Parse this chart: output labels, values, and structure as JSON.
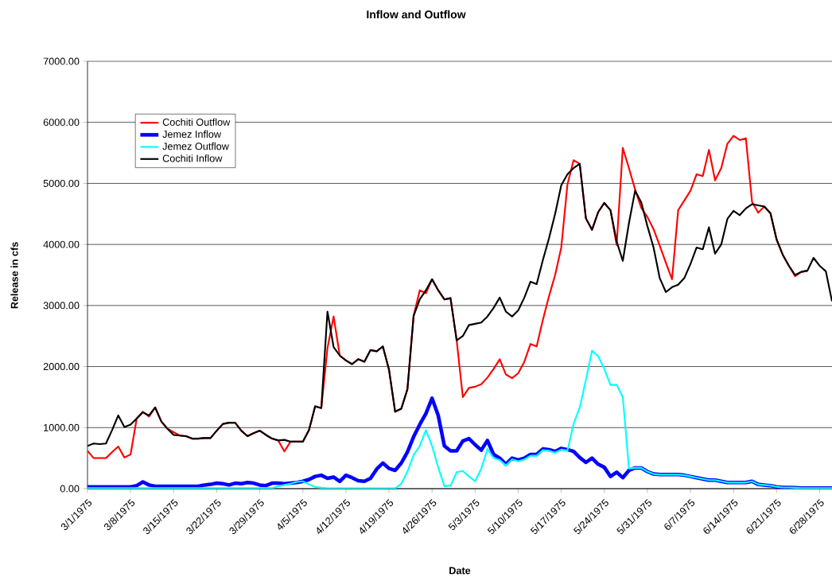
{
  "chart_data": {
    "type": "line",
    "title": "Inflow and Outflow",
    "xlabel": "Date",
    "ylabel": "Release in cfs",
    "x": [
      "1975-03-01",
      "1975-03-02",
      "1975-03-03",
      "1975-03-04",
      "1975-03-05",
      "1975-03-06",
      "1975-03-07",
      "1975-03-08",
      "1975-03-09",
      "1975-03-10",
      "1975-03-11",
      "1975-03-12",
      "1975-03-13",
      "1975-03-14",
      "1975-03-15",
      "1975-03-16",
      "1975-03-17",
      "1975-03-18",
      "1975-03-19",
      "1975-03-20",
      "1975-03-21",
      "1975-03-22",
      "1975-03-23",
      "1975-03-24",
      "1975-03-25",
      "1975-03-26",
      "1975-03-27",
      "1975-03-28",
      "1975-03-29",
      "1975-03-30",
      "1975-03-31",
      "1975-04-01",
      "1975-04-02",
      "1975-04-03",
      "1975-04-04",
      "1975-04-05",
      "1975-04-06",
      "1975-04-07",
      "1975-04-08",
      "1975-04-09",
      "1975-04-10",
      "1975-04-11",
      "1975-04-12",
      "1975-04-13",
      "1975-04-14",
      "1975-04-15",
      "1975-04-16",
      "1975-04-17",
      "1975-04-18",
      "1975-04-19",
      "1975-04-20",
      "1975-04-21",
      "1975-04-22",
      "1975-04-23",
      "1975-04-24",
      "1975-04-25",
      "1975-04-26",
      "1975-04-27",
      "1975-04-28",
      "1975-04-29",
      "1975-04-30",
      "1975-05-01",
      "1975-05-02",
      "1975-05-03",
      "1975-05-04",
      "1975-05-05",
      "1975-05-06",
      "1975-05-07",
      "1975-05-08",
      "1975-05-09",
      "1975-05-10",
      "1975-05-11",
      "1975-05-12",
      "1975-05-13",
      "1975-05-14",
      "1975-05-15",
      "1975-05-16",
      "1975-05-17",
      "1975-05-18",
      "1975-05-19",
      "1975-05-20",
      "1975-05-21",
      "1975-05-22",
      "1975-05-23",
      "1975-05-24",
      "1975-05-25",
      "1975-05-26",
      "1975-05-27",
      "1975-05-28",
      "1975-05-29",
      "1975-05-30",
      "1975-05-31",
      "1975-06-01",
      "1975-06-02",
      "1975-06-03",
      "1975-06-04",
      "1975-06-05",
      "1975-06-06",
      "1975-06-07",
      "1975-06-08",
      "1975-06-09",
      "1975-06-10",
      "1975-06-11",
      "1975-06-12",
      "1975-06-13",
      "1975-06-14",
      "1975-06-15",
      "1975-06-16",
      "1975-06-17",
      "1975-06-18",
      "1975-06-19",
      "1975-06-20",
      "1975-06-21",
      "1975-06-22",
      "1975-06-23",
      "1975-06-24",
      "1975-06-25",
      "1975-06-26",
      "1975-06-27",
      "1975-06-28",
      "1975-06-29",
      "1975-06-30"
    ],
    "series": [
      {
        "name": "Cochiti Outflow",
        "color": "#ff0000",
        "values": [
          620,
          500,
          500,
          500,
          600,
          690,
          510,
          560,
          1150,
          1260,
          1180,
          1330,
          1100,
          980,
          null,
          870,
          860,
          820,
          820,
          830,
          830,
          950,
          1060,
          1080,
          1080,
          950,
          860,
          910,
          950,
          880,
          820,
          790,
          610,
          770,
          null,
          770,
          960,
          1350,
          1320,
          2300,
          2820,
          2180,
          2100,
          2040,
          2120,
          2080,
          2270,
          2250,
          2330,
          1950,
          1260,
          1310,
          1630,
          2830,
          3250,
          3200,
          3430,
          3250,
          3100,
          3120,
          2430,
          1500,
          1650,
          1670,
          1710,
          1820,
          1960,
          2120,
          1870,
          1810,
          1890,
          2080,
          2370,
          2330,
          2760,
          3150,
          3500,
          3950,
          4980,
          5380,
          5320,
          4430,
          4240,
          4530,
          4680,
          4560,
          3990,
          5580,
          5250,
          4900,
          4600,
          4450,
          4250,
          3980,
          3700,
          3430,
          4560,
          4720,
          4880,
          5150,
          5120,
          5550,
          5050,
          5250,
          5650,
          5780,
          5710,
          5740,
          4700,
          4520,
          4620,
          4510,
          4080,
          3830,
          3650,
          3480,
          3550,
          3570,
          null,
          null,
          null,
          null
        ]
      },
      {
        "name": "Jemez Inflow",
        "color": "#0000ff",
        "values": [
          30,
          30,
          30,
          30,
          30,
          30,
          30,
          30,
          50,
          110,
          60,
          40,
          40,
          40,
          40,
          40,
          40,
          40,
          40,
          60,
          70,
          90,
          80,
          60,
          90,
          80,
          100,
          90,
          60,
          50,
          90,
          90,
          80,
          90,
          100,
          120,
          150,
          200,
          220,
          170,
          190,
          120,
          220,
          180,
          130,
          120,
          170,
          320,
          420,
          330,
          300,
          420,
          600,
          850,
          1050,
          1230,
          1480,
          1200,
          700,
          620,
          620,
          780,
          820,
          720,
          630,
          790,
          560,
          500,
          400,
          500,
          470,
          500,
          560,
          560,
          650,
          640,
          610,
          660,
          640,
          610,
          510,
          430,
          500,
          400,
          350,
          200,
          270,
          180,
          300,
          340,
          340,
          280,
          240,
          230,
          230,
          230,
          230,
          220,
          200,
          180,
          160,
          140,
          140,
          120,
          100,
          100,
          100,
          100,
          120,
          70,
          60,
          50,
          30,
          20,
          20,
          15,
          10,
          10,
          10,
          10,
          10,
          10
        ]
      },
      {
        "name": "Jemez Outflow",
        "color": "#00ffff",
        "values": [
          10,
          10,
          10,
          10,
          10,
          10,
          10,
          10,
          10,
          10,
          10,
          10,
          10,
          10,
          10,
          10,
          10,
          10,
          10,
          10,
          10,
          10,
          10,
          10,
          10,
          10,
          10,
          10,
          10,
          10,
          10,
          40,
          60,
          80,
          110,
          120,
          70,
          30,
          15,
          5,
          5,
          5,
          5,
          5,
          5,
          5,
          5,
          5,
          5,
          5,
          5,
          80,
          280,
          550,
          700,
          960,
          700,
          350,
          40,
          50,
          270,
          290,
          200,
          120,
          330,
          650,
          500,
          470,
          380,
          480,
          450,
          480,
          540,
          540,
          630,
          620,
          590,
          640,
          620,
          1060,
          1330,
          1780,
          2260,
          2170,
          1960,
          1700,
          1700,
          1500,
          330,
          340,
          340,
          280,
          240,
          230,
          230,
          230,
          230,
          220,
          200,
          180,
          160,
          140,
          140,
          120,
          100,
          100,
          100,
          100,
          120,
          70,
          60,
          50,
          30,
          20,
          20,
          15,
          10,
          10,
          10,
          10,
          10,
          10
        ]
      },
      {
        "name": "Cochiti Inflow",
        "color": "#000000",
        "values": [
          700,
          740,
          730,
          740,
          960,
          1200,
          1010,
          1050,
          1150,
          1250,
          1200,
          1330,
          1100,
          980,
          880,
          870,
          860,
          820,
          820,
          830,
          830,
          950,
          1060,
          1080,
          1080,
          950,
          860,
          910,
          950,
          880,
          820,
          790,
          800,
          770,
          770,
          770,
          960,
          1350,
          1320,
          2900,
          2320,
          2180,
          2100,
          2040,
          2120,
          2080,
          2270,
          2250,
          2330,
          1950,
          1260,
          1310,
          1630,
          2830,
          3100,
          3250,
          3430,
          3250,
          3100,
          3120,
          2430,
          2500,
          2680,
          2700,
          2720,
          2820,
          2960,
          3130,
          2900,
          2820,
          2920,
          3130,
          3390,
          3350,
          3740,
          4100,
          4500,
          4970,
          5150,
          5250,
          5320,
          4430,
          4240,
          4530,
          4680,
          4560,
          4050,
          3730,
          4350,
          4880,
          4690,
          4300,
          3950,
          3450,
          3220,
          3300,
          3340,
          3450,
          3680,
          3950,
          3920,
          4280,
          3850,
          4000,
          4420,
          4550,
          4480,
          4590,
          4660,
          4640,
          4620,
          4510,
          4080,
          3830,
          3650,
          3500,
          3550,
          3570,
          3780,
          3650,
          3560,
          3070
        ]
      }
    ],
    "xlim": [
      "1975-03-01",
      "1975-06-30"
    ],
    "xticks": [
      {
        "value": "1975-03-01",
        "label": "3/1/1975"
      },
      {
        "value": "1975-03-08",
        "label": "3/8/1975"
      },
      {
        "value": "1975-03-15",
        "label": "3/15/1975"
      },
      {
        "value": "1975-03-22",
        "label": "3/22/1975"
      },
      {
        "value": "1975-03-29",
        "label": "3/29/1975"
      },
      {
        "value": "1975-04-05",
        "label": "4/5/1975"
      },
      {
        "value": "1975-04-12",
        "label": "4/12/1975"
      },
      {
        "value": "1975-04-19",
        "label": "4/19/1975"
      },
      {
        "value": "1975-04-26",
        "label": "4/26/1975"
      },
      {
        "value": "1975-05-03",
        "label": "5/3/1975"
      },
      {
        "value": "1975-05-10",
        "label": "5/10/1975"
      },
      {
        "value": "1975-05-17",
        "label": "5/17/1975"
      },
      {
        "value": "1975-05-24",
        "label": "5/24/1975"
      },
      {
        "value": "1975-05-31",
        "label": "5/31/1975"
      },
      {
        "value": "1975-06-07",
        "label": "6/7/1975"
      },
      {
        "value": "1975-06-14",
        "label": "6/14/1975"
      },
      {
        "value": "1975-06-21",
        "label": "6/21/1975"
      },
      {
        "value": "1975-06-28",
        "label": "6/28/1975"
      }
    ],
    "ylim": [
      0,
      7000
    ],
    "yticks": [
      {
        "value": 0,
        "label": "0.00"
      },
      {
        "value": 1000,
        "label": "1000.00"
      },
      {
        "value": 2000,
        "label": "2000.00"
      },
      {
        "value": 3000,
        "label": "3000.00"
      },
      {
        "value": 4000,
        "label": "4000.00"
      },
      {
        "value": 5000,
        "label": "5000.00"
      },
      {
        "value": 6000,
        "label": "6000.00"
      },
      {
        "value": 7000,
        "label": "7000.00"
      }
    ],
    "grid": "y",
    "legend": "top left"
  }
}
